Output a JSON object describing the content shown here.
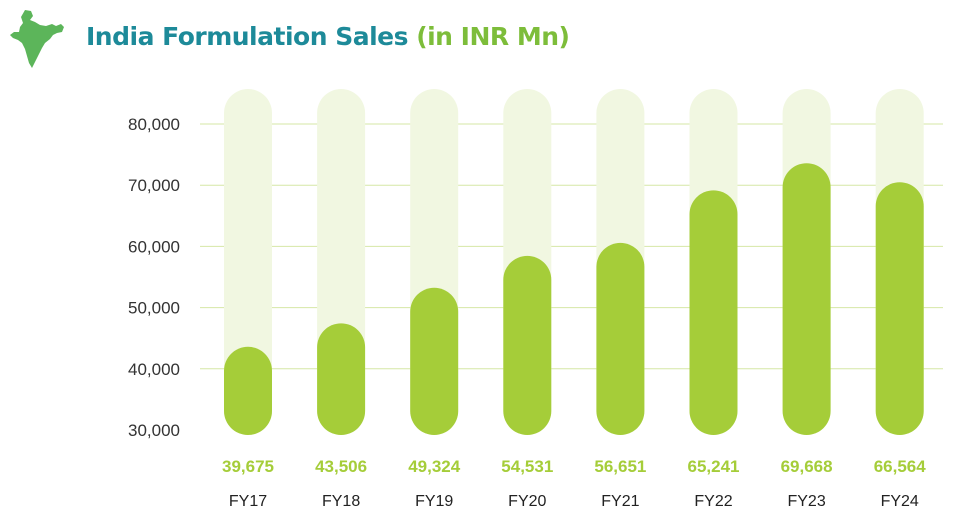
{
  "title": "India Formulation Sales (in INR Mn)",
  "colors": {
    "bar": "#a5cd39",
    "track": "#f1f7e1",
    "grid": "#d6e7a6",
    "title_start": "#1d8a99",
    "title_end": "#7dbd3a",
    "map": "#5cb55a",
    "value_label": "#a5cd39"
  },
  "icons": {
    "header": "india-map-icon"
  },
  "chart_data": {
    "type": "bar",
    "title": "India Formulation Sales (in INR Mn)",
    "xlabel": "",
    "ylabel": "",
    "categories": [
      "FY17",
      "FY18",
      "FY19",
      "FY20",
      "FY21",
      "FY22",
      "FY23",
      "FY24"
    ],
    "values": [
      39675,
      43506,
      49324,
      54531,
      56651,
      65241,
      69668,
      66564
    ],
    "value_labels": [
      "39,675",
      "43,506",
      "49,324",
      "54,531",
      "56,651",
      "65,241",
      "69,668",
      "66,564"
    ],
    "y_ticks": [
      30000,
      40000,
      50000,
      60000,
      70000,
      80000
    ],
    "y_tick_labels": [
      "30,000",
      "40,000",
      "50,000",
      "60,000",
      "70,000",
      "80,000"
    ],
    "ylim": [
      30000,
      80000
    ],
    "grid": true,
    "legend": "none"
  }
}
